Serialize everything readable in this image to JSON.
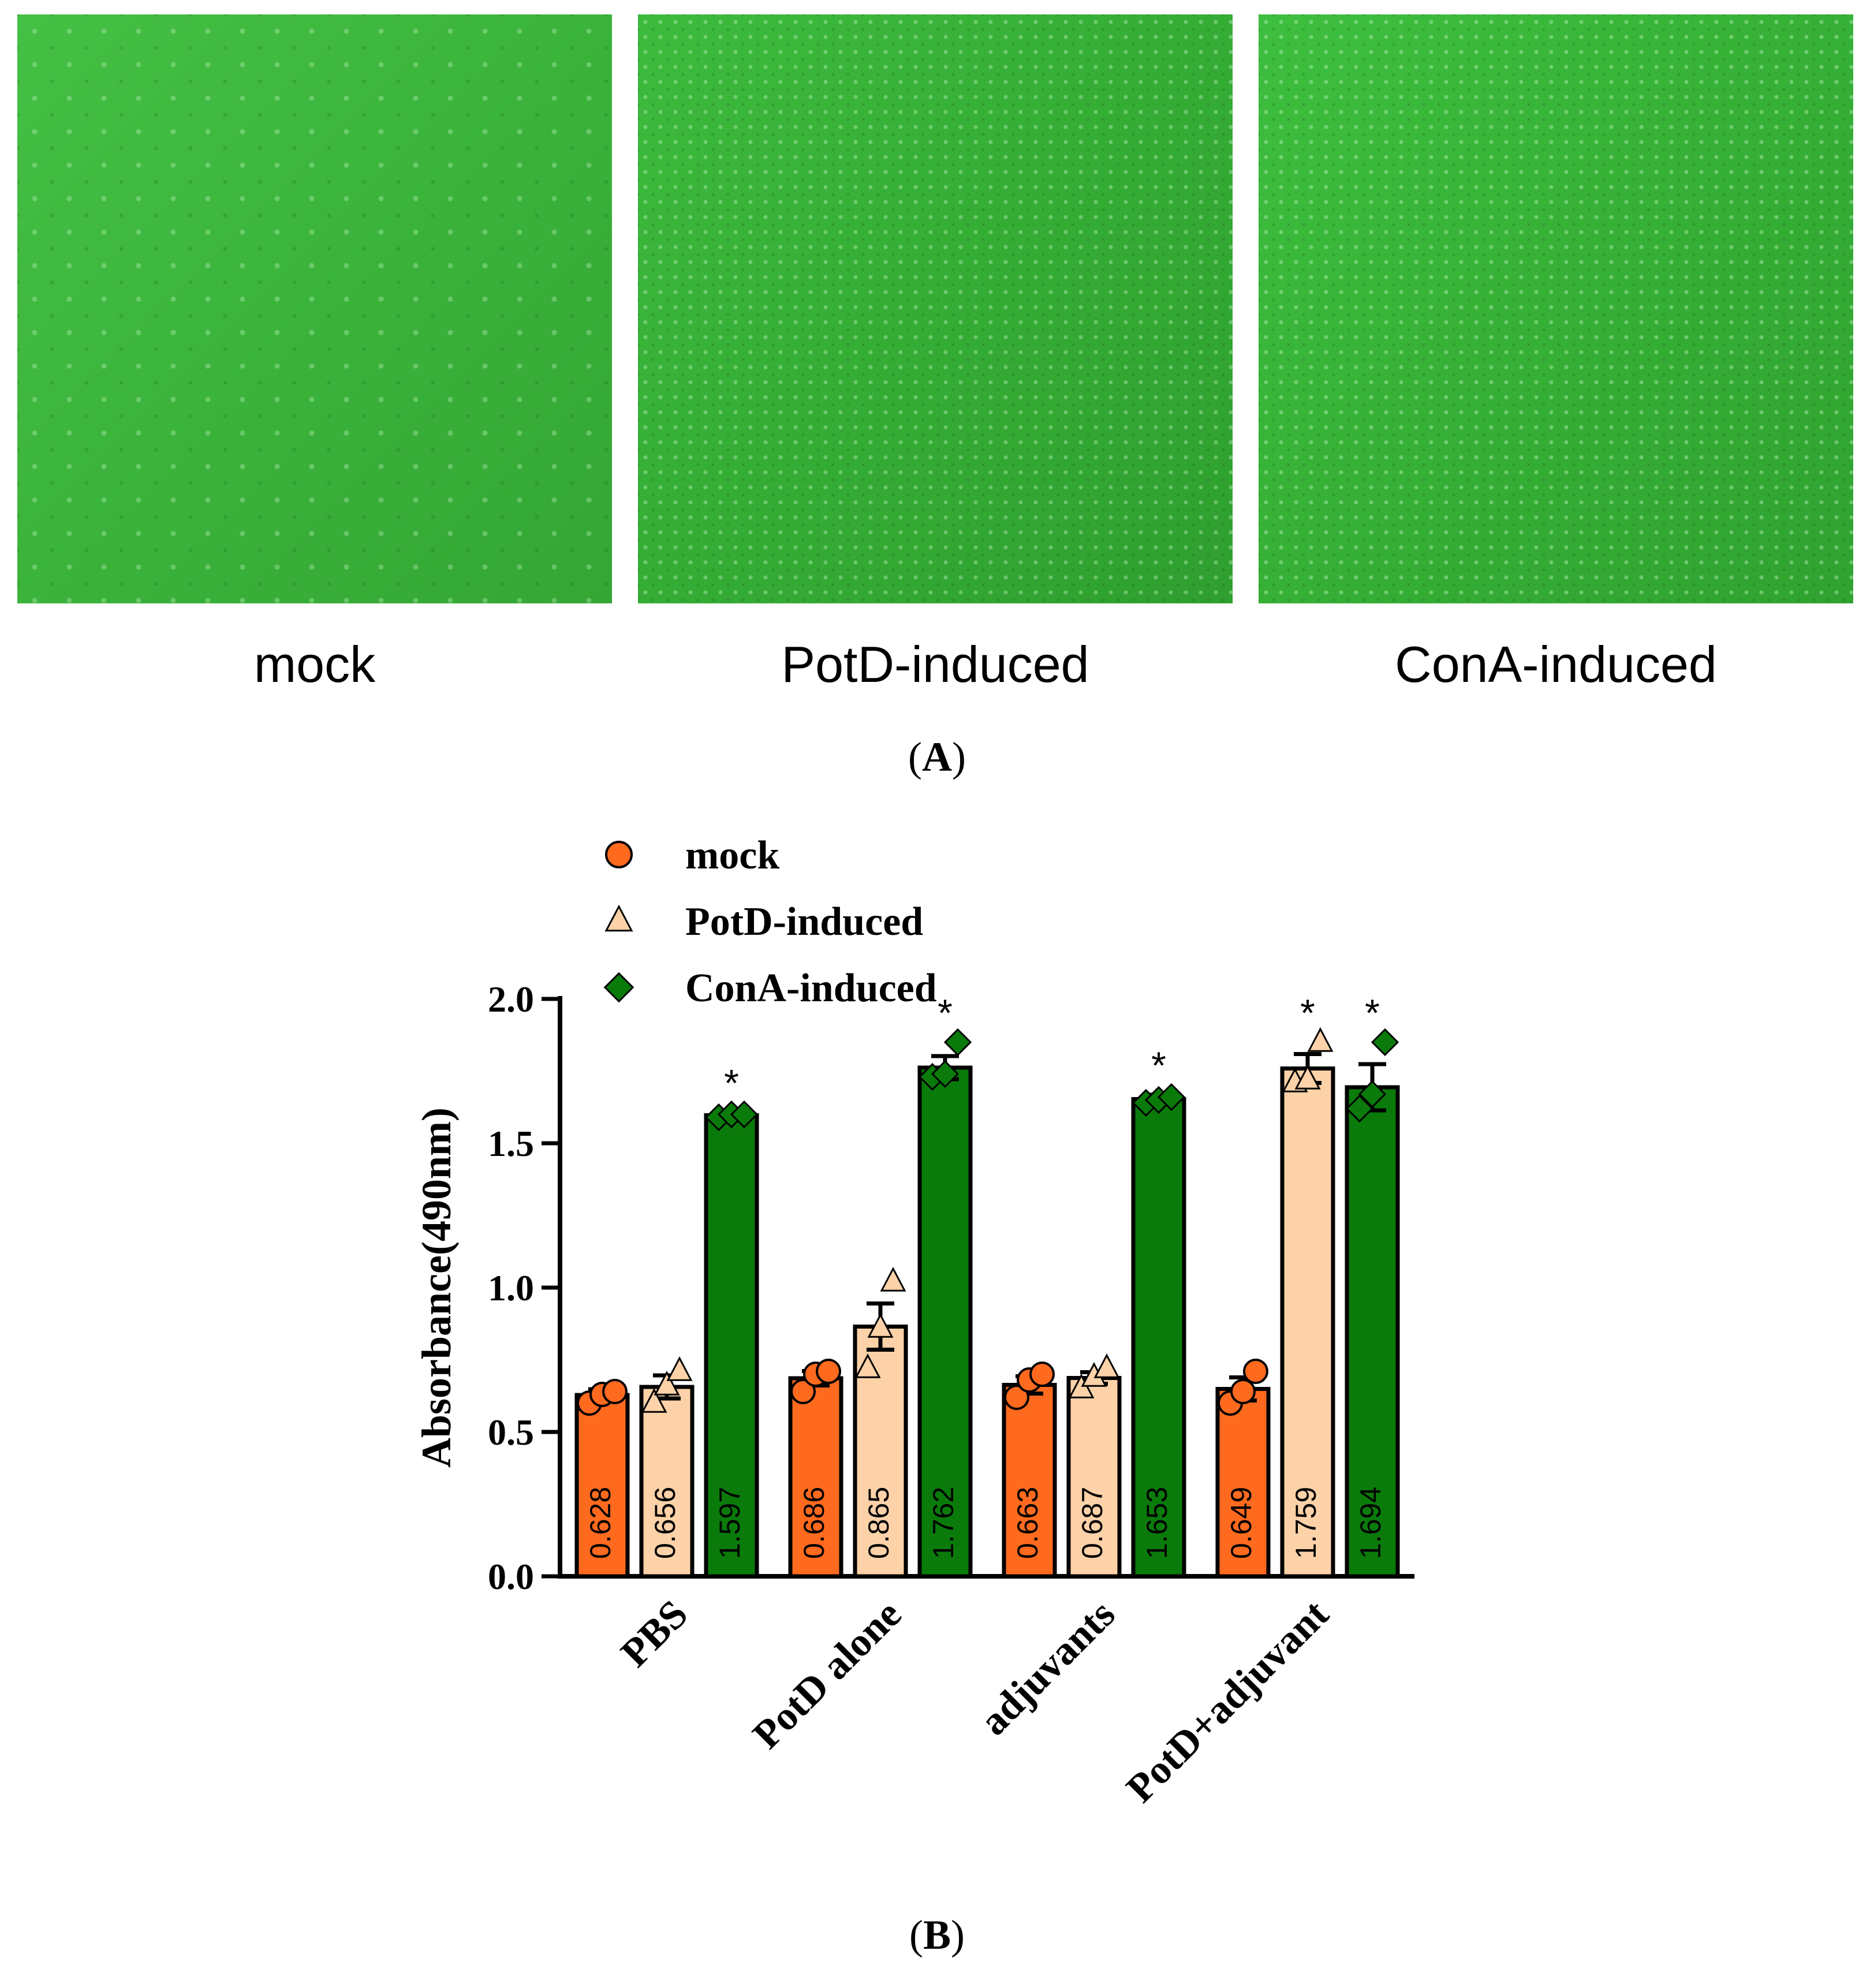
{
  "panel_a": {
    "label_open": "(",
    "label_letter": "A",
    "label_close": ")",
    "images": [
      {
        "caption": "mock"
      },
      {
        "caption": "PotD-induced"
      },
      {
        "caption": "ConA-induced"
      }
    ]
  },
  "panel_b": {
    "label_open": "(",
    "label_letter": "B",
    "label_close": ")"
  },
  "chart_data": {
    "type": "bar",
    "title": "",
    "xlabel": "",
    "ylabel": "Absorbance(490nm)",
    "ylim": [
      0,
      2.0
    ],
    "yticks": [
      "0.0",
      "0.5",
      "1.0",
      "1.5",
      "2.0"
    ],
    "categories": [
      "PBS",
      "PotD alone",
      "adjuvants",
      "PotD+adjuvant"
    ],
    "legend_position": "top-left",
    "grid": false,
    "series": [
      {
        "name": "mock",
        "color": "#ff6a1f",
        "marker": "circle",
        "values": [
          0.628,
          0.686,
          0.663,
          0.649
        ],
        "labels": [
          "0.628",
          "0.686",
          "0.663",
          "0.649"
        ],
        "errors": [
          0.02,
          0.025,
          0.03,
          0.04
        ],
        "points": [
          [
            0.6,
            0.63,
            0.64
          ],
          [
            0.64,
            0.7,
            0.71
          ],
          [
            0.62,
            0.68,
            0.7
          ],
          [
            0.6,
            0.64,
            0.71
          ]
        ],
        "significant": [
          false,
          false,
          false,
          false
        ]
      },
      {
        "name": "PotD-induced",
        "color": "#fdd2a8",
        "marker": "triangle",
        "values": [
          0.656,
          0.865,
          0.687,
          1.759
        ],
        "labels": [
          "0.656",
          "0.865",
          "0.687",
          "1.759"
        ],
        "errors": [
          0.04,
          0.08,
          0.02,
          0.05
        ],
        "points": [
          [
            0.6,
            0.66,
            0.71
          ],
          [
            0.72,
            0.86,
            1.02
          ],
          [
            0.65,
            0.69,
            0.72
          ],
          [
            1.71,
            1.72,
            1.85
          ]
        ],
        "significant": [
          false,
          false,
          false,
          true
        ]
      },
      {
        "name": "ConA-induced",
        "color": "#0a7a0a",
        "marker": "diamond",
        "values": [
          1.597,
          1.762,
          1.653,
          1.694
        ],
        "labels": [
          "1.597",
          "1.762",
          "1.653",
          "1.694"
        ],
        "errors": [
          0.01,
          0.04,
          0.015,
          0.08
        ],
        "points": [
          [
            1.59,
            1.6,
            1.6
          ],
          [
            1.73,
            1.74,
            1.85
          ],
          [
            1.64,
            1.65,
            1.66
          ],
          [
            1.62,
            1.67,
            1.85
          ]
        ],
        "significant": [
          true,
          true,
          true,
          true
        ]
      }
    ],
    "significance_marker": "*"
  }
}
